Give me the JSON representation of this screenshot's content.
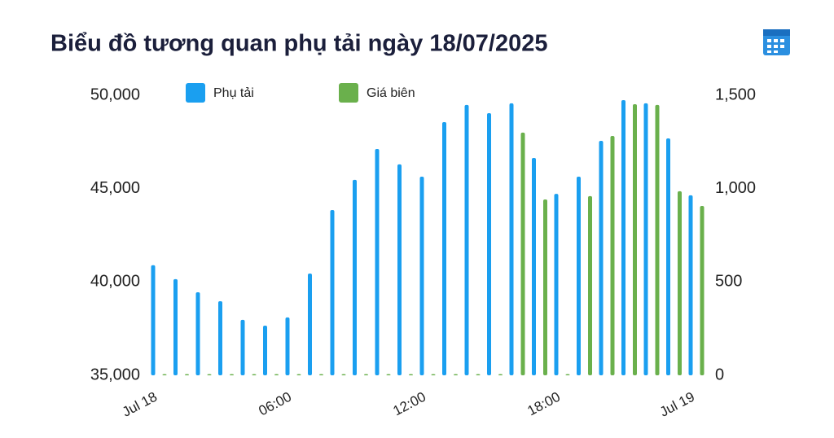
{
  "chart_data": {
    "type": "bar",
    "title": "Biểu đồ tương quan phụ tải ngày 18/07/2025",
    "categories": [
      "Jul 18",
      null,
      null,
      null,
      null,
      null,
      "06:00",
      null,
      null,
      null,
      null,
      null,
      "12:00",
      null,
      null,
      null,
      null,
      null,
      "18:00",
      null,
      null,
      null,
      null,
      null,
      "Jul 19"
    ],
    "series": [
      {
        "name": "Phụ tải",
        "color": "#1a9ff0",
        "values": [
          40900,
          40150,
          39450,
          38970,
          37970,
          37660,
          38100,
          40450,
          43850,
          45470,
          47120,
          46300,
          45640,
          48560,
          49480,
          49040,
          49570,
          46640,
          44720,
          45640,
          47560,
          49740,
          49570,
          47690,
          44640
        ]
      },
      {
        "name": "Giá biên",
        "color": "#6ab04c",
        "axis": "y2",
        "values": [
          0,
          0,
          0,
          0,
          0,
          0,
          0,
          0,
          0,
          0,
          0,
          0,
          0,
          0,
          0,
          0,
          1300,
          942,
          0,
          960,
          1282,
          1452,
          1448,
          986,
          907
        ]
      }
    ],
    "ylim": [
      35000,
      50000
    ],
    "yticks": [
      {
        "value": 35000,
        "label": "35,000"
      },
      {
        "value": 40000,
        "label": "40,000"
      },
      {
        "value": 45000,
        "label": "45,000"
      },
      {
        "value": 50000,
        "label": "50,000"
      }
    ],
    "y2lim": [
      0,
      1500
    ],
    "y2ticks": [
      0,
      500,
      {
        "value": 1000,
        "label": "1,000"
      },
      {
        "value": 1500,
        "label": "1,500"
      }
    ]
  }
}
